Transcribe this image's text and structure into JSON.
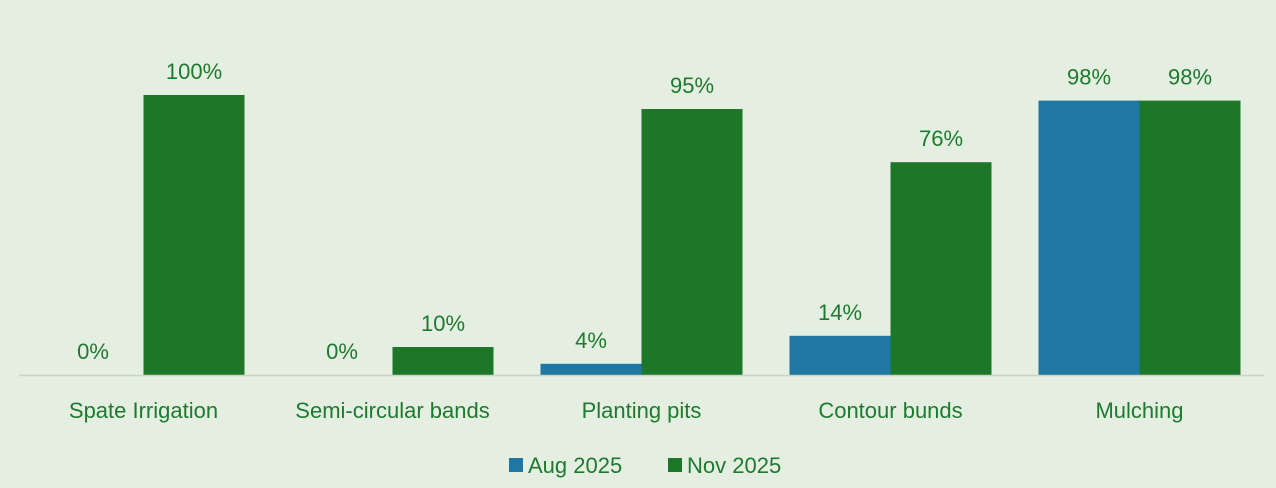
{
  "figure_caption": "",
  "chart_data": {
    "type": "bar",
    "categories": [
      "Spate Irrigation",
      "Semi-circular bands",
      "Planting pits",
      "Contour bunds",
      "Mulching"
    ],
    "series": [
      {
        "name": "Aug 2025",
        "color": "#1f77a4",
        "values": [
          0,
          0,
          4,
          14,
          98
        ],
        "labels": [
          "0%",
          "0%",
          "4%",
          "14%",
          "98%"
        ]
      },
      {
        "name": "Nov 2025",
        "color": "#1e7629",
        "values": [
          100,
          10,
          95,
          76,
          98
        ],
        "labels": [
          "100%",
          "10%",
          "95%",
          "76%",
          "98%"
        ]
      }
    ],
    "ylim": [
      0,
      100
    ],
    "unit": "%",
    "grid": false,
    "legend_position": "bottom",
    "axis_color": "#c9d4c6",
    "label_color": "#1e7a2e",
    "background": "#e4efe1"
  }
}
